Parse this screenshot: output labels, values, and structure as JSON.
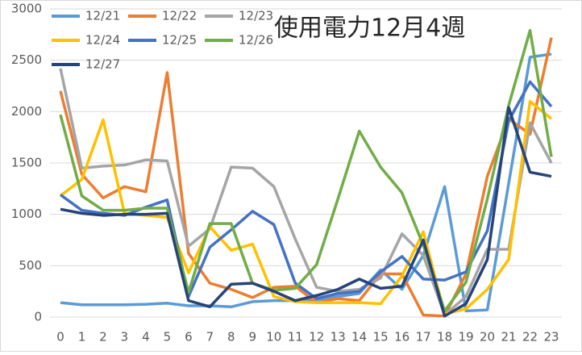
{
  "chart_data": {
    "type": "line",
    "title": "使用電力12月4週",
    "x": [
      0,
      1,
      2,
      3,
      4,
      5,
      6,
      7,
      8,
      9,
      10,
      11,
      12,
      13,
      14,
      15,
      16,
      17,
      18,
      19,
      20,
      21,
      22,
      23
    ],
    "xlim": [
      0,
      23
    ],
    "ylim": [
      0,
      3000
    ],
    "yticks": [
      0,
      500,
      1000,
      1500,
      2000,
      2500,
      3000
    ],
    "grid": true,
    "series": [
      {
        "name": "12/21",
        "color": "#5b9bd5",
        "values": [
          140,
          120,
          120,
          120,
          125,
          135,
          110,
          110,
          100,
          150,
          160,
          160,
          170,
          200,
          230,
          460,
          270,
          600,
          1270,
          60,
          70,
          1300,
          2530,
          2560
        ]
      },
      {
        "name": "12/22",
        "color": "#ed7d31",
        "values": [
          2200,
          1390,
          1160,
          1270,
          1220,
          2380,
          620,
          330,
          270,
          190,
          290,
          300,
          140,
          180,
          160,
          420,
          420,
          20,
          10,
          420,
          1370,
          1930,
          1780,
          2720
        ]
      },
      {
        "name": "12/23",
        "color": "#a5a5a5",
        "values": [
          2420,
          1450,
          1470,
          1480,
          1530,
          1520,
          690,
          860,
          1460,
          1450,
          1270,
          760,
          290,
          250,
          270,
          380,
          810,
          600,
          20,
          200,
          660,
          660,
          1890,
          1500
        ]
      },
      {
        "name": "12/24",
        "color": "#ffc000",
        "values": [
          1180,
          1340,
          1920,
          1010,
          990,
          970,
          430,
          880,
          650,
          710,
          200,
          150,
          140,
          140,
          140,
          130,
          400,
          830,
          30,
          80,
          270,
          560,
          2100,
          1930
        ]
      },
      {
        "name": "12/25",
        "color": "#4472c4",
        "values": [
          1190,
          1040,
          1010,
          990,
          1070,
          1140,
          200,
          680,
          850,
          1030,
          900,
          330,
          180,
          230,
          250,
          440,
          590,
          370,
          360,
          440,
          840,
          1910,
          2290,
          2050
        ]
      },
      {
        "name": "12/26",
        "color": "#70ad47",
        "values": [
          1970,
          1180,
          1040,
          1040,
          1060,
          1060,
          240,
          910,
          910,
          330,
          260,
          280,
          510,
          1150,
          1810,
          1460,
          1210,
          700,
          60,
          340,
          1150,
          2060,
          2790,
          1560
        ]
      },
      {
        "name": "12/27",
        "color": "#264478",
        "values": [
          1050,
          1010,
          990,
          1000,
          1000,
          1010,
          160,
          100,
          320,
          330,
          250,
          160,
          210,
          270,
          370,
          280,
          300,
          750,
          10,
          130,
          560,
          2040,
          1410,
          1370
        ]
      }
    ]
  }
}
